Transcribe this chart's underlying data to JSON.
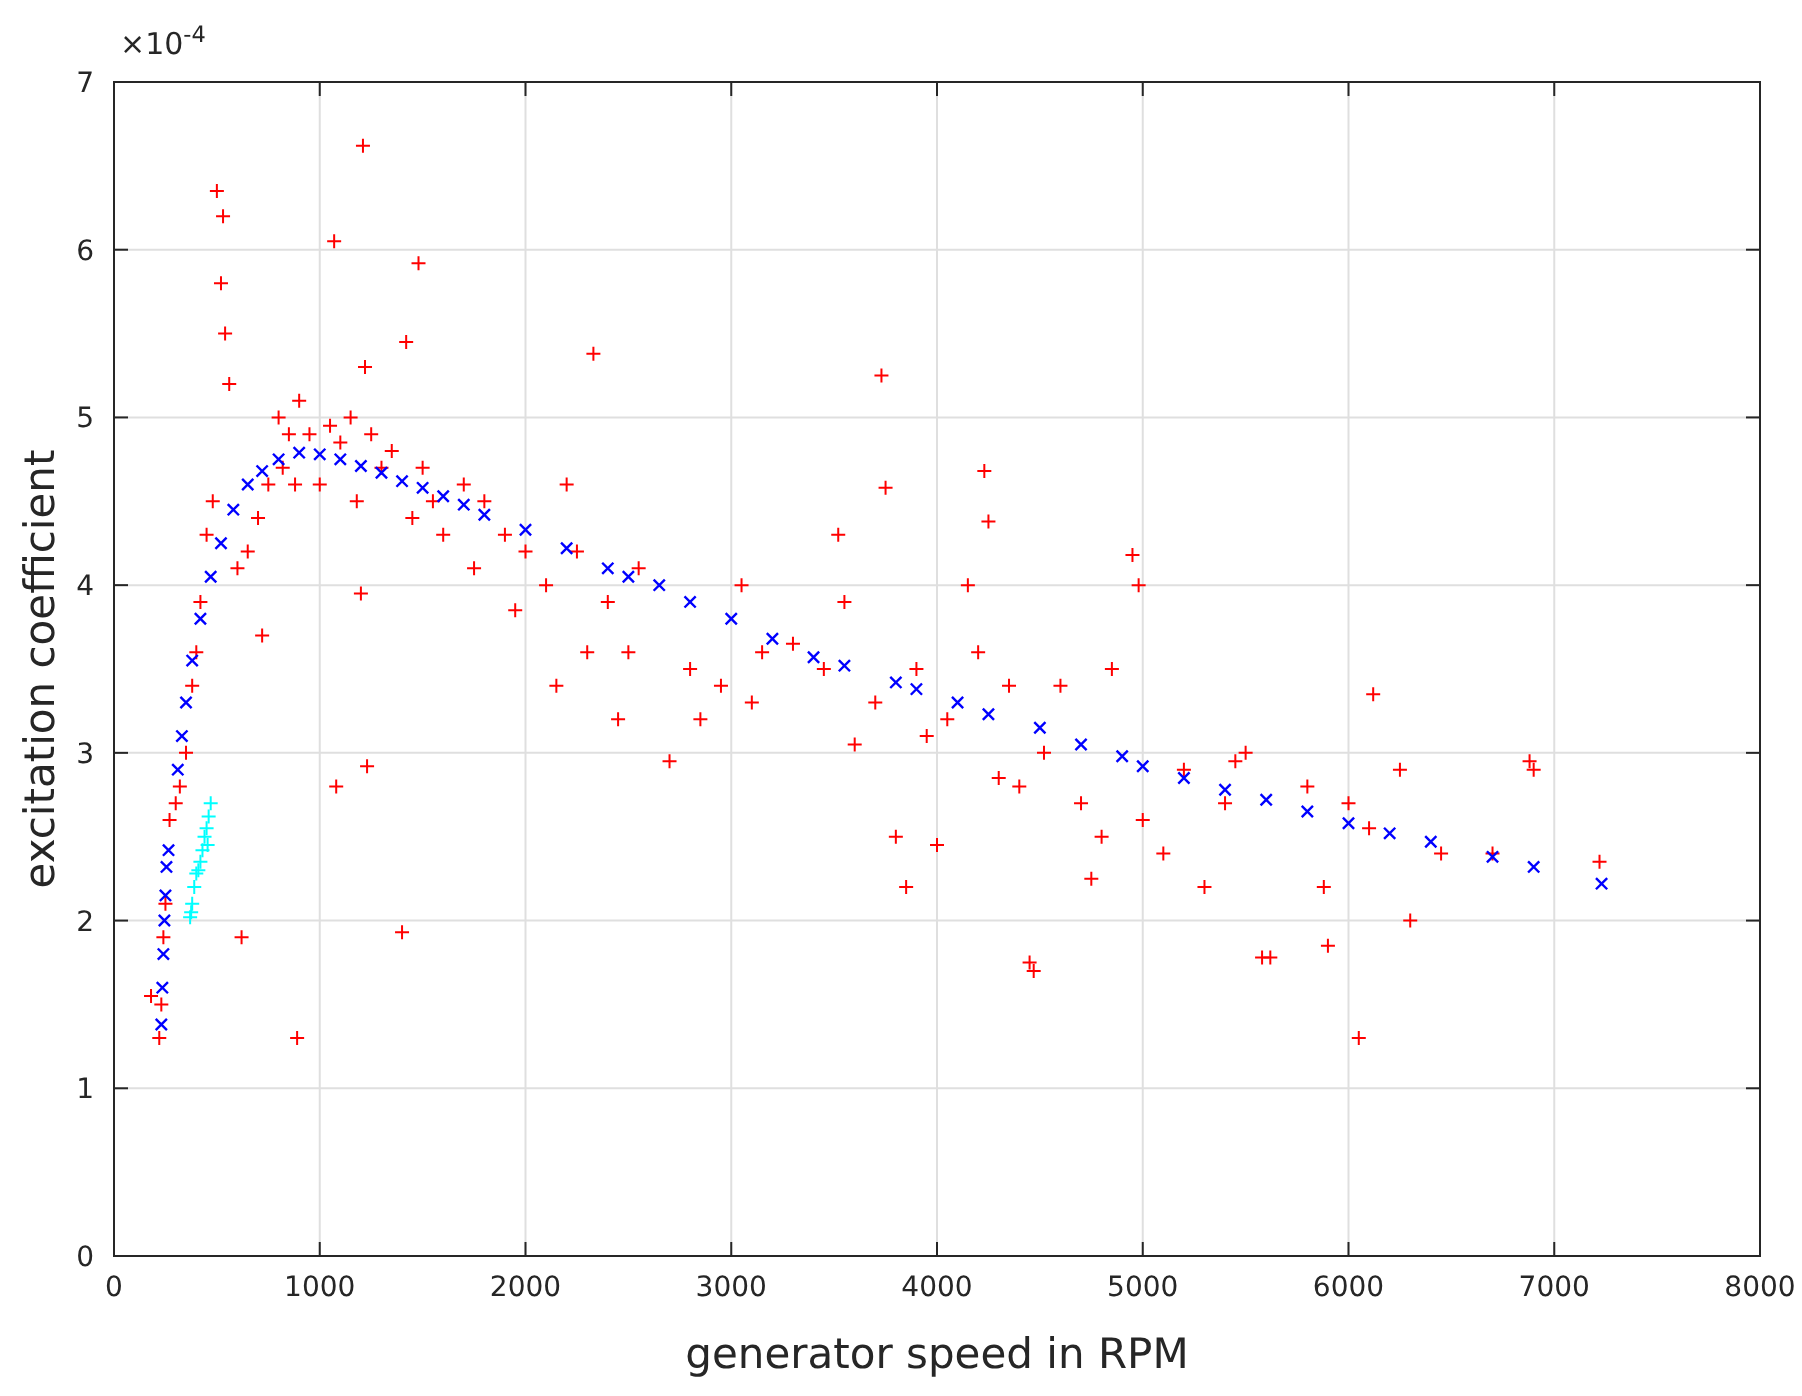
{
  "chart_data": {
    "type": "scatter",
    "xlabel": "generator speed in RPM",
    "ylabel": "excitation coefficient",
    "annotations": [
      "×10$^{-4}$"
    ],
    "xlim": [
      0,
      8000
    ],
    "xticks": [
      0,
      1000,
      2000,
      3000,
      4000,
      5000,
      6000,
      7000,
      8000
    ],
    "ylim": [
      0,
      7
    ],
    "yticks": [
      0,
      1,
      2,
      3,
      4,
      5,
      6,
      7
    ],
    "grid": true,
    "series": [
      {
        "color": "#ff0000",
        "marker": "cross",
        "x": [
          180,
          220,
          230,
          240,
          250,
          270,
          300,
          320,
          350,
          380,
          400,
          420,
          450,
          480,
          500,
          520,
          530,
          540,
          560,
          600,
          620,
          650,
          700,
          720,
          750,
          800,
          820,
          850,
          880,
          890,
          900,
          950,
          1000,
          1050,
          1070,
          1080,
          1100,
          1150,
          1180,
          1200,
          1210,
          1220,
          1230,
          1250,
          1300,
          1350,
          1400,
          1420,
          1450,
          1480,
          1500,
          1550,
          1600,
          1700,
          1750,
          1800,
          1900,
          1950,
          2000,
          2100,
          2150,
          2200,
          2250,
          2300,
          2330,
          2400,
          2450,
          2500,
          2550,
          2700,
          2800,
          2850,
          2950,
          3050,
          3100,
          3150,
          3300,
          3450,
          3520,
          3550,
          3600,
          3700,
          3730,
          3750,
          3800,
          3850,
          3900,
          3950,
          4000,
          4050,
          4150,
          4200,
          4230,
          4250,
          4300,
          4350,
          4400,
          4450,
          4470,
          4520,
          4600,
          4700,
          4750,
          4800,
          4850,
          4950,
          4980,
          5000,
          5100,
          5200,
          5300,
          5400,
          5450,
          5500,
          5580,
          5620,
          5800,
          5880,
          5900,
          6000,
          6050,
          6100,
          6120,
          6250,
          6300,
          6450,
          6700,
          6880,
          6900,
          7220
        ],
        "values": [
          1.55,
          1.3,
          1.5,
          1.9,
          2.1,
          2.6,
          2.7,
          2.8,
          3.0,
          3.4,
          3.6,
          3.9,
          4.3,
          4.5,
          6.35,
          5.8,
          6.2,
          5.5,
          5.2,
          4.1,
          1.9,
          4.2,
          4.4,
          3.7,
          4.6,
          5.0,
          4.7,
          4.9,
          4.6,
          1.3,
          5.1,
          4.9,
          4.6,
          4.95,
          6.05,
          2.8,
          4.85,
          5.0,
          4.5,
          3.95,
          6.62,
          5.3,
          2.92,
          4.9,
          4.7,
          4.8,
          1.93,
          5.45,
          4.4,
          5.92,
          4.7,
          4.5,
          4.3,
          4.6,
          4.1,
          4.5,
          4.3,
          3.85,
          4.2,
          4.0,
          3.4,
          4.6,
          4.2,
          3.6,
          5.38,
          3.9,
          3.2,
          3.6,
          4.1,
          2.95,
          3.5,
          3.2,
          3.4,
          4.0,
          3.3,
          3.6,
          3.65,
          3.5,
          4.3,
          3.9,
          3.05,
          3.3,
          5.25,
          4.58,
          2.5,
          2.2,
          3.5,
          3.1,
          2.45,
          3.2,
          4.0,
          3.6,
          4.68,
          4.38,
          2.85,
          3.4,
          2.8,
          1.75,
          1.7,
          3.0,
          3.4,
          2.7,
          2.25,
          2.5,
          3.5,
          4.18,
          4.0,
          2.6,
          2.4,
          2.9,
          2.2,
          2.7,
          2.95,
          3.0,
          1.78,
          1.78,
          2.8,
          2.2,
          1.85,
          2.7,
          1.3,
          2.55,
          3.35,
          2.9,
          2.0,
          2.4,
          2.4,
          2.95,
          2.9,
          2.35
        ]
      },
      {
        "color": "#0000ff",
        "marker": "x",
        "x": [
          230,
          235,
          240,
          245,
          250,
          255,
          265,
          310,
          330,
          350,
          380,
          420,
          470,
          520,
          580,
          650,
          720,
          800,
          900,
          1000,
          1100,
          1200,
          1300,
          1400,
          1500,
          1600,
          1700,
          1800,
          2000,
          2200,
          2400,
          2500,
          2650,
          2800,
          3000,
          3200,
          3400,
          3550,
          3800,
          3900,
          4100,
          4250,
          4500,
          4700,
          4900,
          5000,
          5200,
          5400,
          5600,
          5800,
          6000,
          6200,
          6400,
          6700,
          6900,
          7230
        ],
        "values": [
          1.38,
          1.6,
          1.8,
          2.0,
          2.15,
          2.32,
          2.42,
          2.9,
          3.1,
          3.3,
          3.55,
          3.8,
          4.05,
          4.25,
          4.45,
          4.6,
          4.68,
          4.75,
          4.79,
          4.78,
          4.75,
          4.71,
          4.67,
          4.62,
          4.58,
          4.53,
          4.48,
          4.42,
          4.33,
          4.22,
          4.1,
          4.05,
          4.0,
          3.9,
          3.8,
          3.68,
          3.57,
          3.52,
          3.42,
          3.38,
          3.3,
          3.23,
          3.15,
          3.05,
          2.98,
          2.92,
          2.85,
          2.78,
          2.72,
          2.65,
          2.58,
          2.52,
          2.47,
          2.38,
          2.32,
          2.22
        ]
      },
      {
        "color": "#00ffff",
        "marker": "cross",
        "x": [
          370,
          375,
          380,
          390,
          400,
          410,
          420,
          430,
          440,
          450,
          455,
          460,
          470
        ],
        "values": [
          2.02,
          2.05,
          2.1,
          2.2,
          2.28,
          2.3,
          2.35,
          2.42,
          2.5,
          2.55,
          2.45,
          2.62,
          2.7
        ]
      }
    ]
  }
}
